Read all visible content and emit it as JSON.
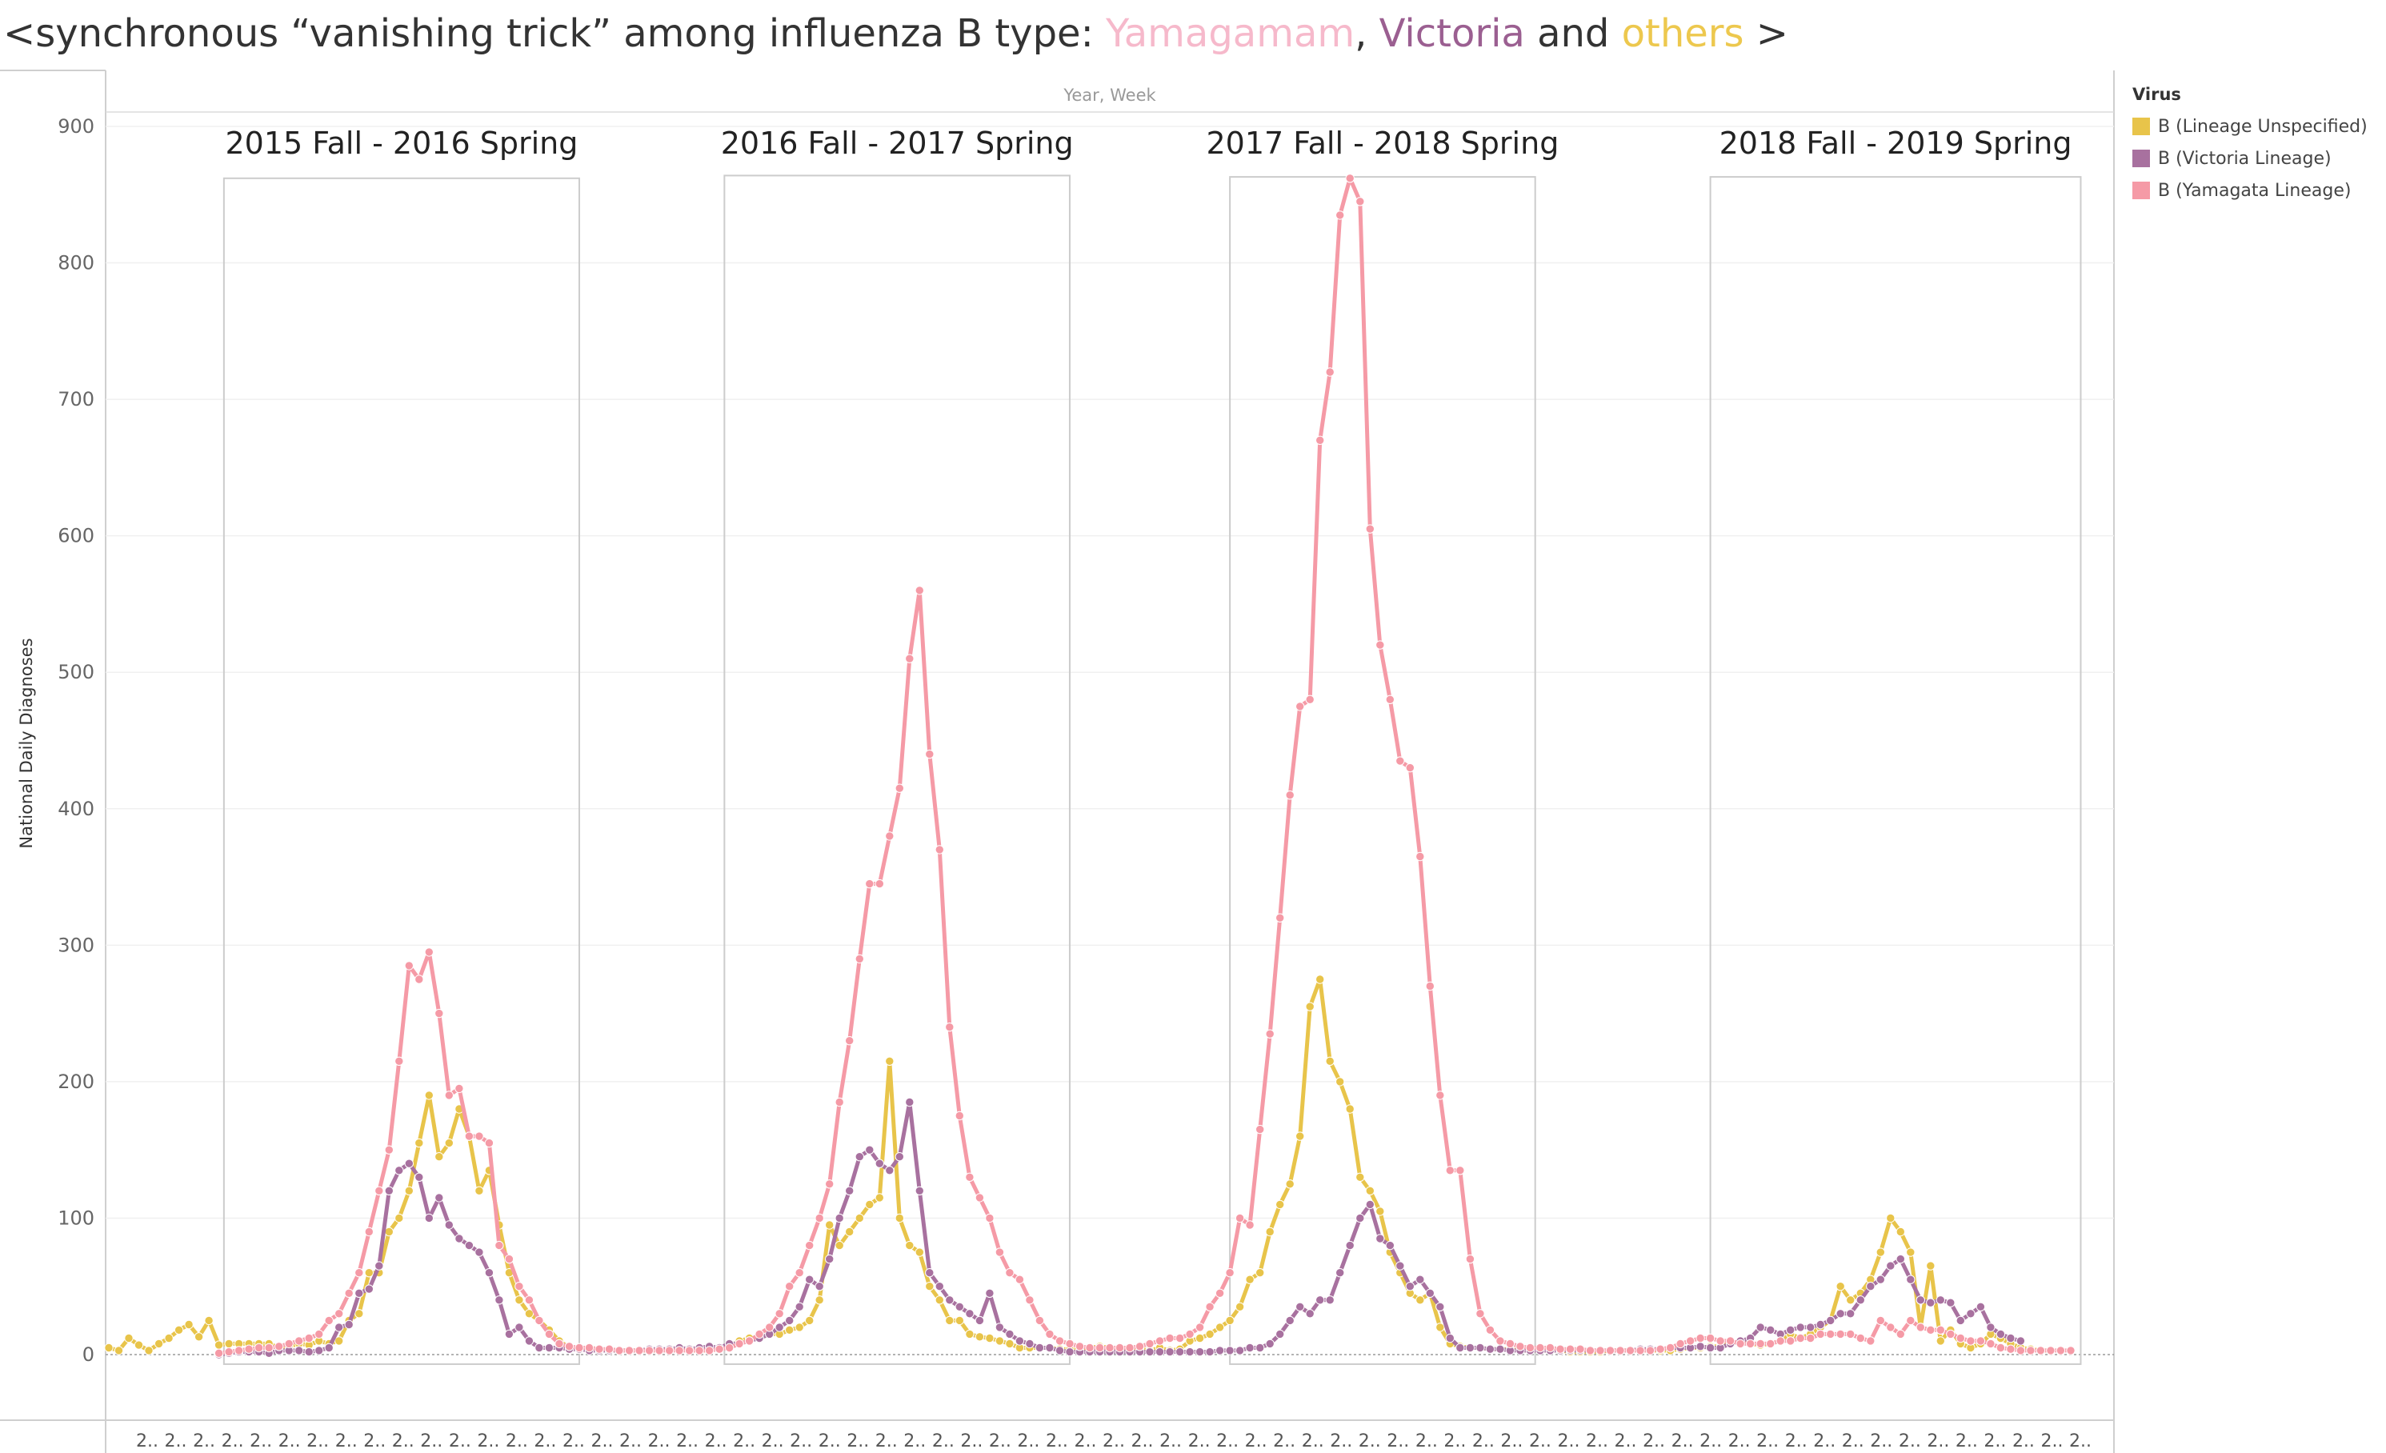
{
  "title": {
    "prefix": "<synchronous “vanishing trick” among influenza B type: ",
    "yam": "Yamagamam",
    "sep1": ", ",
    "vic": "Victoria",
    "sep2": " and ",
    "oth": "others",
    "suffix": " >"
  },
  "legend": {
    "title": "Virus",
    "items": [
      {
        "label": "B (Lineage Unspecified)",
        "color": "#e8c44a"
      },
      {
        "label": "B (Victoria Lineage)",
        "color": "#a8719f"
      },
      {
        "label": "B (Yamagata Lineage)",
        "color": "#f59aa6"
      }
    ]
  },
  "chart_data": {
    "type": "line",
    "top_axis_label": "Year, Week",
    "xlabel": "",
    "ylabel": "National Daily Diagnoses",
    "ylim": [
      -12,
      905
    ],
    "yticks": [
      0,
      100,
      200,
      300,
      400,
      500,
      600,
      700,
      800,
      900
    ],
    "x_range": [
      0,
      200
    ],
    "x_tick_label": "2..",
    "x_tick_count": 69,
    "grid": true,
    "legend_position": "right",
    "seasons": [
      {
        "label": "2015 Fall - 2016 Spring",
        "x_start": 11.5,
        "x_end": 47,
        "y_top": 862
      },
      {
        "label": "2016 Fall - 2017 Spring",
        "x_start": 61.5,
        "x_end": 96,
        "y_top": 864
      },
      {
        "label": "2017 Fall - 2018 Spring",
        "x_start": 112,
        "x_end": 142.5,
        "y_top": 863
      },
      {
        "label": "2018 Fall - 2019 Spring",
        "x_start": 160,
        "x_end": 197,
        "y_top": 863
      }
    ],
    "series": [
      {
        "name": "B (Lineage Unspecified)",
        "color": "#e8c44a",
        "x_start": 0,
        "values": [
          5,
          3,
          12,
          7,
          3,
          8,
          12,
          18,
          22,
          13,
          25,
          7,
          8,
          8,
          8,
          8,
          8,
          5,
          6,
          8,
          7,
          10,
          8,
          10,
          25,
          30,
          60,
          60,
          90,
          100,
          120,
          155,
          190,
          145,
          155,
          180,
          160,
          120,
          135,
          95,
          60,
          40,
          30,
          25,
          18,
          10,
          5,
          5,
          5,
          4,
          3,
          3,
          3,
          3,
          3,
          3,
          4,
          4,
          3,
          3,
          3,
          5,
          6,
          10,
          12,
          12,
          15,
          15,
          18,
          20,
          25,
          40,
          95,
          80,
          90,
          100,
          110,
          115,
          215,
          100,
          80,
          75,
          50,
          40,
          25,
          25,
          15,
          13,
          12,
          10,
          8,
          5,
          5,
          5,
          5,
          4,
          4,
          3,
          5,
          6,
          5,
          5,
          4,
          4,
          3,
          5,
          3,
          4,
          10,
          12,
          15,
          20,
          25,
          35,
          55,
          60,
          90,
          110,
          125,
          160,
          255,
          275,
          215,
          200,
          180,
          130,
          120,
          105,
          75,
          60,
          45,
          40,
          45,
          20,
          8,
          6,
          5,
          5,
          4,
          4,
          4,
          3,
          3,
          3,
          3,
          3,
          2,
          2,
          2,
          2,
          3,
          3,
          3,
          3,
          3,
          3,
          3,
          4,
          5,
          5,
          6,
          6,
          8,
          10,
          8,
          7,
          8,
          10,
          15,
          12,
          15,
          20,
          25,
          50,
          40,
          45,
          55,
          75,
          100,
          90,
          75,
          20,
          65,
          10,
          18,
          8,
          5,
          8,
          15,
          12,
          8,
          5,
          4,
          3,
          3
        ]
      },
      {
        "name": "B (Victoria Lineage)",
        "color": "#a8719f",
        "x_start": 11,
        "values": [
          0,
          1,
          2,
          2,
          2,
          1,
          3,
          3,
          3,
          2,
          3,
          5,
          20,
          22,
          45,
          48,
          65,
          120,
          135,
          140,
          130,
          100,
          115,
          95,
          85,
          80,
          75,
          60,
          40,
          15,
          20,
          10,
          5,
          5,
          5,
          4,
          4,
          3,
          3,
          3,
          3,
          3,
          3,
          4,
          4,
          4,
          5,
          4,
          5,
          6,
          5,
          8,
          8,
          10,
          12,
          15,
          20,
          25,
          35,
          55,
          50,
          70,
          100,
          120,
          145,
          150,
          140,
          135,
          145,
          185,
          120,
          60,
          50,
          40,
          35,
          30,
          25,
          45,
          20,
          15,
          10,
          8,
          5,
          5,
          3,
          2,
          2,
          2,
          2,
          2,
          2,
          2,
          2,
          2,
          2,
          2,
          2,
          2,
          2,
          2,
          3,
          3,
          3,
          5,
          5,
          8,
          15,
          25,
          35,
          30,
          40,
          40,
          60,
          80,
          100,
          110,
          85,
          80,
          65,
          50,
          55,
          45,
          35,
          12,
          5,
          5,
          5,
          4,
          4,
          3,
          3,
          3,
          3,
          3,
          3,
          3,
          3,
          3,
          3,
          3,
          3,
          3,
          4,
          4,
          4,
          5,
          5,
          5,
          6,
          5,
          5,
          8,
          10,
          12,
          20,
          18,
          15,
          18,
          20,
          20,
          22,
          25,
          30,
          30,
          40,
          50,
          55,
          65,
          70,
          55,
          40,
          38,
          40,
          38,
          25,
          30,
          35,
          20,
          15,
          12,
          10
        ]
      },
      {
        "name": "B (Yamagata Lineage)",
        "color": "#f59aa6",
        "x_start": 11,
        "values": [
          1,
          2,
          3,
          4,
          5,
          5,
          6,
          8,
          10,
          12,
          15,
          25,
          30,
          45,
          60,
          90,
          120,
          150,
          215,
          285,
          275,
          295,
          250,
          190,
          195,
          160,
          160,
          155,
          80,
          70,
          50,
          40,
          25,
          15,
          8,
          6,
          5,
          5,
          4,
          4,
          3,
          3,
          3,
          3,
          3,
          3,
          3,
          3,
          3,
          3,
          4,
          5,
          8,
          10,
          15,
          20,
          30,
          50,
          60,
          80,
          100,
          125,
          185,
          230,
          290,
          345,
          345,
          380,
          415,
          510,
          560,
          440,
          370,
          240,
          175,
          130,
          115,
          100,
          75,
          60,
          55,
          40,
          25,
          15,
          10,
          8,
          6,
          5,
          5,
          5,
          5,
          5,
          6,
          8,
          10,
          12,
          12,
          15,
          20,
          35,
          45,
          60,
          100,
          95,
          165,
          235,
          320,
          410,
          475,
          480,
          670,
          720,
          835,
          862,
          845,
          605,
          520,
          480,
          435,
          430,
          365,
          270,
          190,
          135,
          135,
          70,
          30,
          18,
          10,
          8,
          6,
          5,
          5,
          5,
          4,
          4,
          4,
          3,
          3,
          3,
          3,
          3,
          3,
          3,
          4,
          5,
          8,
          10,
          12,
          12,
          10,
          10,
          8,
          8,
          8,
          8,
          10,
          10,
          12,
          12,
          15,
          15,
          15,
          15,
          12,
          10,
          25,
          20,
          15,
          25,
          20,
          18,
          18,
          15,
          12,
          10,
          10,
          8,
          5,
          4,
          3,
          3,
          3,
          3,
          3,
          3
        ]
      }
    ]
  }
}
